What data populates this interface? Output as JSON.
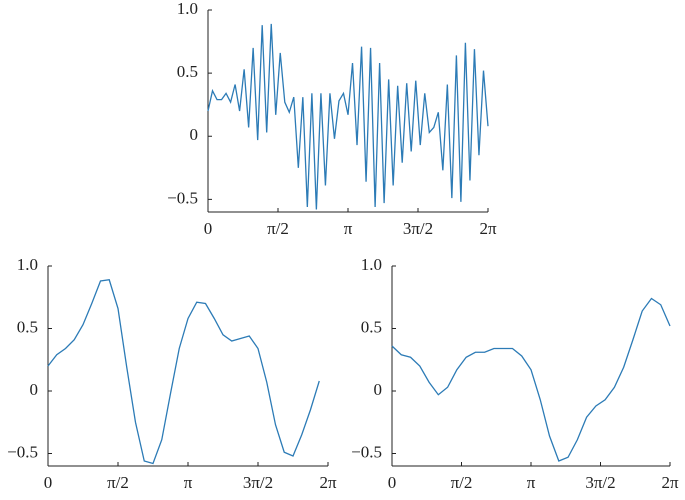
{
  "chart_data": [
    {
      "type": "line",
      "x": [
        0,
        0.101,
        0.203,
        0.304,
        0.405,
        0.507,
        0.608,
        0.709,
        0.811,
        0.912,
        1.013,
        1.115,
        1.216,
        1.317,
        1.419,
        1.52,
        1.621,
        1.723,
        1.824,
        1.925,
        2.027,
        2.128,
        2.229,
        2.331,
        2.432,
        2.534,
        2.635,
        2.736,
        2.838,
        2.939,
        3.04,
        3.142,
        3.243,
        3.344,
        3.446,
        3.547,
        3.648,
        3.75,
        3.851,
        3.952,
        4.054,
        4.155,
        4.256,
        4.358,
        4.459,
        4.56,
        4.662,
        4.763,
        4.864,
        4.966,
        5.067,
        5.168,
        5.27,
        5.371,
        5.472,
        5.574,
        5.675,
        5.776,
        5.878,
        5.979,
        6.08,
        6.182,
        6.283
      ],
      "values": [
        0.2,
        0.36,
        0.29,
        0.29,
        0.34,
        0.27,
        0.41,
        0.2,
        0.53,
        0.07,
        0.7,
        -0.03,
        0.88,
        0.03,
        0.89,
        0.17,
        0.66,
        0.27,
        0.19,
        0.31,
        -0.25,
        0.31,
        -0.56,
        0.34,
        -0.58,
        0.34,
        -0.39,
        0.34,
        -0.02,
        0.28,
        0.34,
        0.17,
        0.58,
        -0.07,
        0.71,
        -0.36,
        0.7,
        -0.56,
        0.58,
        -0.53,
        0.45,
        -0.39,
        0.4,
        -0.21,
        0.42,
        -0.12,
        0.44,
        -0.07,
        0.34,
        0.03,
        0.07,
        0.19,
        -0.27,
        0.41,
        -0.49,
        0.64,
        -0.52,
        0.74,
        -0.35,
        0.69,
        -0.15,
        0.52,
        0.08
      ],
      "color": "#2c7bb6",
      "xlim": [
        0,
        6.2832
      ],
      "ylim": [
        -0.6,
        1.0
      ],
      "xticks": [
        0,
        {
          "value": 1.5708,
          "label": "π/2"
        },
        {
          "value": 3.1416,
          "label": "π"
        },
        {
          "value": 4.7124,
          "label": "3π/2"
        },
        {
          "value": 6.2832,
          "label": "2π"
        }
      ],
      "yticks": [
        {
          "value": -0.5,
          "label": "−0.5"
        },
        0,
        0.5,
        {
          "value": 1,
          "label": "1.0"
        }
      ]
    },
    {
      "type": "line",
      "x": [
        0,
        0.196,
        0.393,
        0.589,
        0.785,
        0.982,
        1.178,
        1.374,
        1.571,
        1.767,
        1.963,
        2.16,
        2.356,
        2.553,
        2.749,
        2.945,
        3.142,
        3.338,
        3.534,
        3.731,
        3.927,
        4.123,
        4.32,
        4.516,
        4.712,
        4.909,
        5.105,
        5.301,
        5.498,
        5.694,
        5.89,
        6.087
      ],
      "values": [
        0.2,
        0.29,
        0.34,
        0.41,
        0.53,
        0.7,
        0.88,
        0.89,
        0.66,
        0.19,
        -0.25,
        -0.56,
        -0.58,
        -0.39,
        -0.02,
        0.34,
        0.58,
        0.71,
        0.7,
        0.58,
        0.45,
        0.4,
        0.42,
        0.44,
        0.34,
        0.07,
        -0.27,
        -0.49,
        -0.52,
        -0.35,
        -0.15,
        0.08
      ],
      "color": "#2c7bb6",
      "xlim": [
        0,
        6.2832
      ],
      "ylim": [
        -0.6,
        1.0
      ],
      "xticks": [
        0,
        {
          "value": 1.5708,
          "label": "π/2"
        },
        {
          "value": 3.1416,
          "label": "π"
        },
        {
          "value": 4.7124,
          "label": "3π/2"
        },
        {
          "value": 6.2832,
          "label": "2π"
        }
      ],
      "yticks": [
        {
          "value": -0.5,
          "label": "−0.5"
        },
        0,
        0.5,
        {
          "value": 1,
          "label": "1.0"
        }
      ]
    },
    {
      "type": "line",
      "x": [
        0,
        0.209,
        0.419,
        0.628,
        0.838,
        1.047,
        1.257,
        1.466,
        1.676,
        1.885,
        2.094,
        2.304,
        2.513,
        2.723,
        2.932,
        3.142,
        3.351,
        3.56,
        3.77,
        3.979,
        4.189,
        4.398,
        4.608,
        4.817,
        5.027,
        5.236,
        5.445,
        5.655,
        5.864,
        6.074,
        6.283
      ],
      "values": [
        0.36,
        0.29,
        0.27,
        0.2,
        0.07,
        -0.03,
        0.03,
        0.17,
        0.27,
        0.31,
        0.31,
        0.34,
        0.34,
        0.34,
        0.28,
        0.17,
        -0.07,
        -0.36,
        -0.56,
        -0.53,
        -0.39,
        -0.21,
        -0.12,
        -0.07,
        0.03,
        0.19,
        0.41,
        0.64,
        0.74,
        0.69,
        0.52
      ],
      "color": "#2c7bb6",
      "xlim": [
        0,
        6.2832
      ],
      "ylim": [
        -0.6,
        1.0
      ],
      "xticks": [
        0,
        {
          "value": 1.5708,
          "label": "π/2"
        },
        {
          "value": 3.1416,
          "label": "π"
        },
        {
          "value": 4.7124,
          "label": "3π/2"
        },
        {
          "value": 6.2832,
          "label": "2π"
        }
      ],
      "yticks": [
        {
          "value": -0.5,
          "label": "−0.5"
        },
        0,
        0.5,
        {
          "value": 1,
          "label": "1.0"
        }
      ]
    }
  ]
}
